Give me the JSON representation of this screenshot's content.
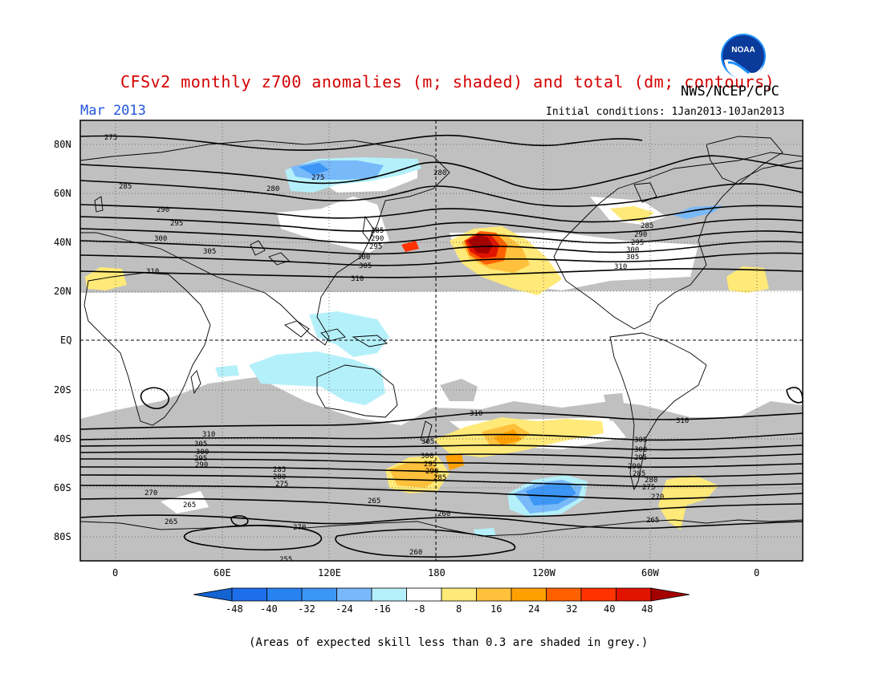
{
  "header": {
    "title": "CFSv2 monthly z700 anomalies (m; shaded) and total (dm; contours)",
    "org": "NWS/NCEP/CPC",
    "month": "Mar 2013",
    "initial_conditions": "Initial conditions: 1Jan2013-10Jan2013",
    "logo_text": "NOAA"
  },
  "axes": {
    "lat_labels": [
      "80N",
      "60N",
      "40N",
      "20N",
      "EQ",
      "20S",
      "40S",
      "60S",
      "80S"
    ],
    "lon_labels": [
      "0",
      "60E",
      "120E",
      "180",
      "120W",
      "60W",
      "0"
    ]
  },
  "contours": {
    "labels": [
      "275",
      "285",
      "290",
      "295",
      "300",
      "305",
      "310",
      "280",
      "285",
      "290",
      "295",
      "300",
      "305",
      "310",
      "275",
      "280",
      "285",
      "290",
      "295",
      "300",
      "305",
      "310",
      "310",
      "310",
      "305",
      "300",
      "295",
      "290",
      "285",
      "280",
      "275",
      "270",
      "265",
      "265",
      "265",
      "270",
      "260",
      "260",
      "255",
      "305",
      "300",
      "295",
      "290",
      "285",
      "305",
      "300",
      "295",
      "290",
      "285",
      "280",
      "275",
      "270",
      "265",
      "310"
    ]
  },
  "colorbar": {
    "ticks": [
      "-48",
      "-40",
      "-32",
      "-24",
      "-16",
      "-8",
      "8",
      "16",
      "24",
      "32",
      "40",
      "48"
    ],
    "colors": [
      "#1464d2",
      "#1e6eeb",
      "#2882f0",
      "#3c96f5",
      "#78b9fa",
      "#b4f0fa",
      "#ffffff",
      "#ffe978",
      "#ffc03c",
      "#ffa000",
      "#ff6000",
      "#ff3200",
      "#e11400",
      "#a50000"
    ]
  },
  "footnote": "(Areas of expected skill less than 0.3 are shaded in grey.)"
}
